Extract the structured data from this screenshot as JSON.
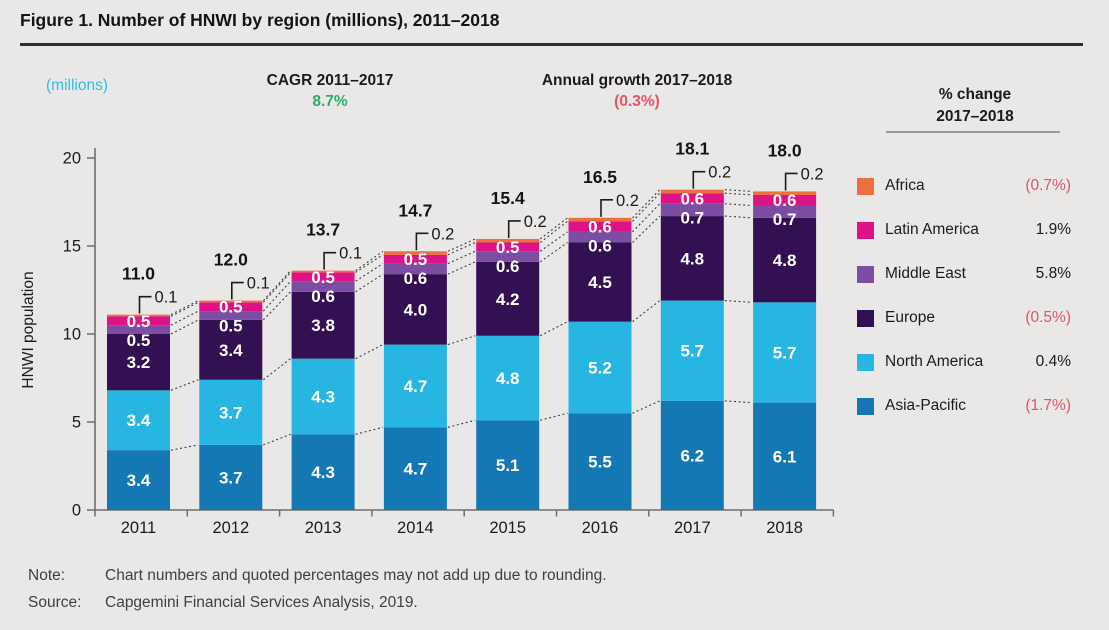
{
  "figure": {
    "title": "Figure 1. Number of HNWI by region (millions), 2011–2018",
    "note_label": "Note:",
    "note_text": "Chart numbers and quoted percentages may not add up due to rounding.",
    "source_label": "Source:",
    "source_text": "Capgemini Financial Services Analysis, 2019."
  },
  "annotations": {
    "units_label": "(millions)",
    "cagr_label": "CAGR 2011–2017",
    "cagr_value": "8.7%",
    "growth_label": "Annual growth 2017–2018",
    "growth_value": "(0.3%)"
  },
  "colors": {
    "positive_text": "#1b1b1b",
    "negative_text": "#E25568",
    "green_accent": "#2EAE68",
    "cyan_accent": "#33BCE5",
    "axis": "#6e6e6e",
    "connector": "#3f3f3f",
    "bar_label": "#ffffff"
  },
  "legend": {
    "header_line1": "% change",
    "header_line2": "2017–2018",
    "items": [
      {
        "label": "Africa",
        "pct": "(0.7%)",
        "negative": true,
        "color": "#ED6F3F"
      },
      {
        "label": "Latin America",
        "pct": "1.9%",
        "negative": false,
        "color": "#DD1285"
      },
      {
        "label": "Middle East",
        "pct": "5.8%",
        "negative": false,
        "color": "#7B4EA3"
      },
      {
        "label": "Europe",
        "pct": "(0.5%)",
        "negative": true,
        "color": "#331052"
      },
      {
        "label": "North America",
        "pct": "0.4%",
        "negative": false,
        "color": "#27B5E2"
      },
      {
        "label": "Asia-Pacific",
        "pct": "(1.7%)",
        "negative": true,
        "color": "#1478B5"
      }
    ]
  },
  "chart_data": {
    "type": "bar",
    "stacked": true,
    "title": "Number of HNWI by region (millions), 2011–2018",
    "xlabel": "",
    "ylabel": "HNWI population",
    "ylim": [
      0,
      20
    ],
    "yticks": [
      0,
      5,
      10,
      15,
      20
    ],
    "grid": false,
    "legend_position": "right",
    "categories": [
      "2011",
      "2012",
      "2013",
      "2014",
      "2015",
      "2016",
      "2017",
      "2018"
    ],
    "series": [
      {
        "name": "Asia-Pacific",
        "color": "#1478B5",
        "values": [
          3.4,
          3.7,
          4.3,
          4.7,
          5.1,
          5.5,
          6.2,
          6.1
        ]
      },
      {
        "name": "North America",
        "color": "#27B5E2",
        "values": [
          3.4,
          3.7,
          4.3,
          4.7,
          4.8,
          5.2,
          5.7,
          5.7
        ]
      },
      {
        "name": "Europe",
        "color": "#331052",
        "values": [
          3.2,
          3.4,
          3.8,
          4.0,
          4.2,
          4.5,
          4.8,
          4.8
        ]
      },
      {
        "name": "Middle East",
        "color": "#7B4EA3",
        "values": [
          0.5,
          0.5,
          0.6,
          0.6,
          0.6,
          0.6,
          0.7,
          0.7
        ]
      },
      {
        "name": "Latin America",
        "color": "#DD1285",
        "values": [
          0.5,
          0.5,
          0.5,
          0.5,
          0.5,
          0.6,
          0.6,
          0.6
        ]
      },
      {
        "name": "Africa",
        "color": "#ED6F3F",
        "values": [
          0.1,
          0.1,
          0.1,
          0.2,
          0.2,
          0.2,
          0.2,
          0.2
        ]
      }
    ],
    "totals": [
      "11.0",
      "12.0",
      "13.7",
      "14.7",
      "15.4",
      "16.5",
      "18.1",
      "18.0"
    ],
    "africa_callouts": [
      "0.1",
      "0.1",
      "0.1",
      "0.2",
      "0.2",
      "0.2",
      "0.2",
      "0.2"
    ]
  }
}
